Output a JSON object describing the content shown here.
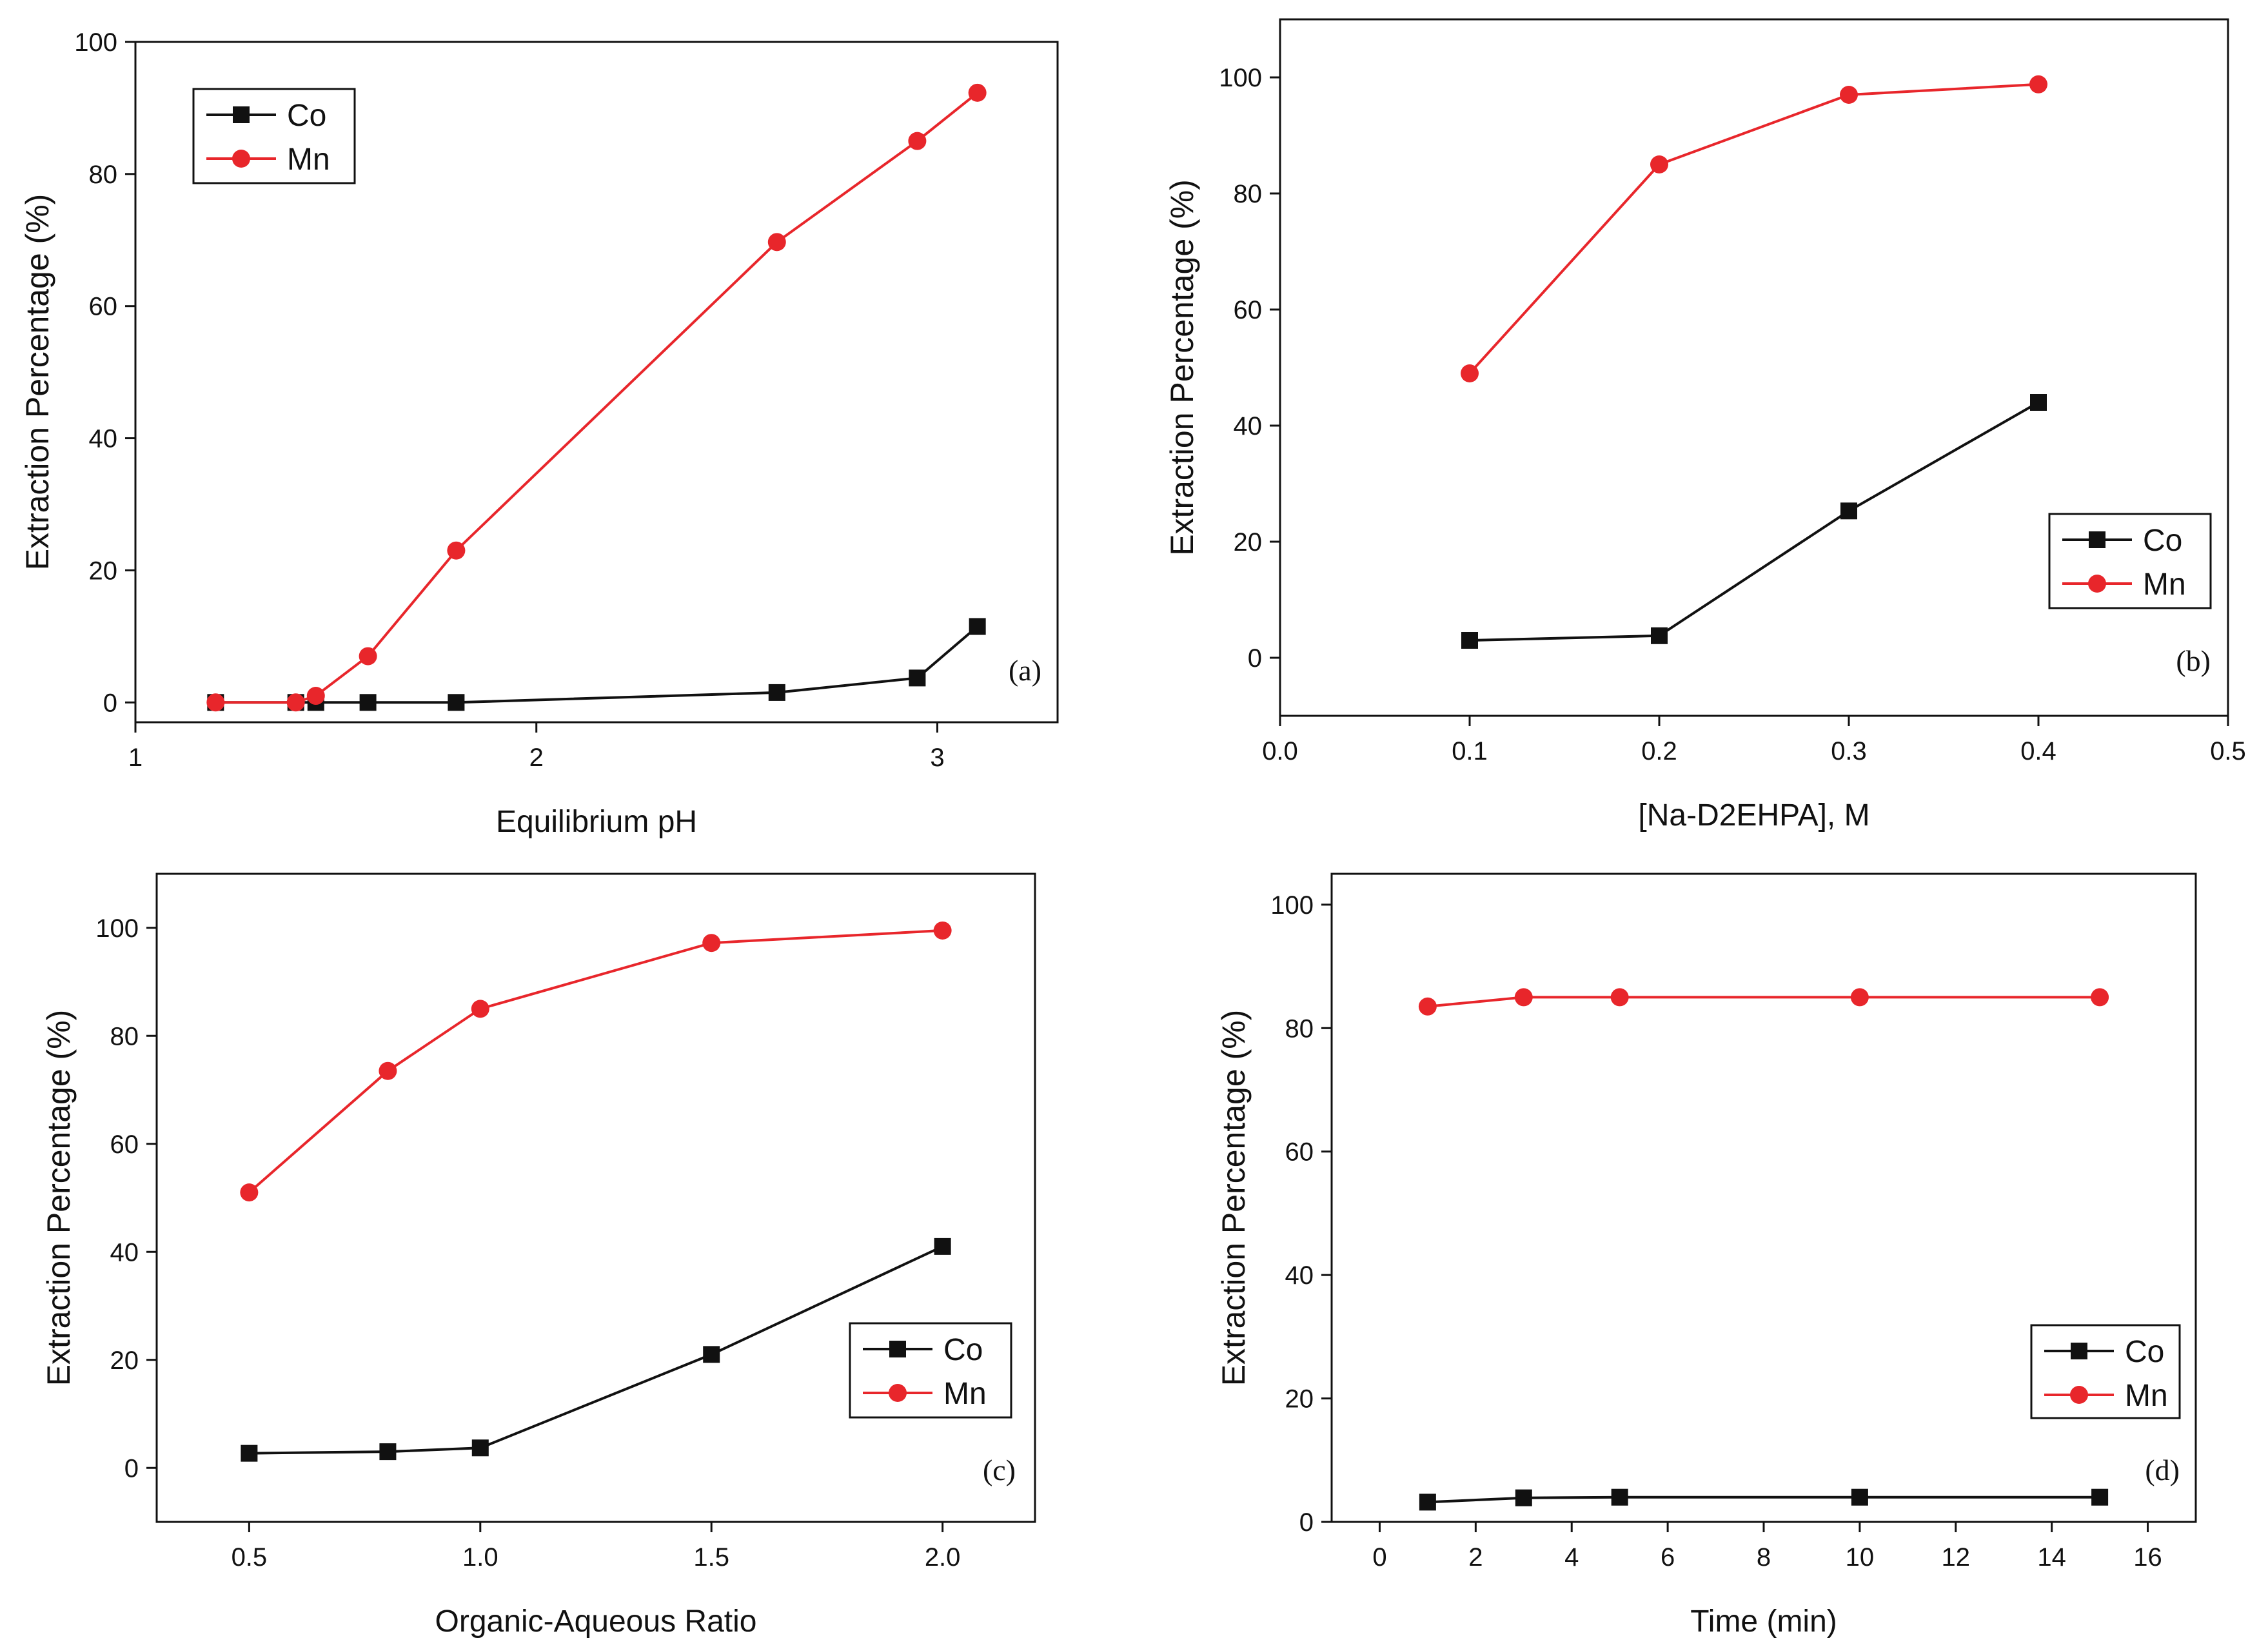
{
  "chart_data": [
    {
      "type": "line",
      "panel_label": "(a)",
      "xlabel": "Equilibrium pH",
      "ylabel": "Extraction Percentage (%)",
      "xlim": [
        1.0,
        3.3
      ],
      "ylim": [
        -3,
        100
      ],
      "xticks": [
        1,
        2,
        3
      ],
      "xtick_labels": [
        "1",
        "2",
        "3"
      ],
      "yticks": [
        0,
        20,
        40,
        60,
        80,
        100
      ],
      "ytick_labels": [
        "0",
        "20",
        "40",
        "60",
        "80",
        "100"
      ],
      "legend_position": "top-left",
      "series": [
        {
          "name": "Co",
          "marker": "square",
          "color": "#111111",
          "x": [
            1.2,
            1.4,
            1.45,
            1.58,
            1.8,
            2.6,
            2.95,
            3.1
          ],
          "y": [
            0,
            0,
            0,
            0,
            0,
            1.5,
            3.7,
            11.5
          ]
        },
        {
          "name": "Mn",
          "marker": "circle",
          "color": "#e8262b",
          "x": [
            1.2,
            1.4,
            1.45,
            1.58,
            1.8,
            2.6,
            2.95,
            3.1
          ],
          "y": [
            0,
            0,
            1.0,
            7.0,
            23.0,
            69.7,
            85.0,
            92.3
          ]
        }
      ]
    },
    {
      "type": "line",
      "panel_label": "(b)",
      "xlabel": "[Na-D2EHPA], M",
      "ylabel": "Extraction Percentage (%)",
      "xlim": [
        0.0,
        0.5
      ],
      "ylim": [
        -10,
        110
      ],
      "xticks": [
        0.0,
        0.1,
        0.2,
        0.3,
        0.4,
        0.5
      ],
      "xtick_labels": [
        "0.0",
        "0.1",
        "0.2",
        "0.3",
        "0.4",
        "0.5"
      ],
      "yticks": [
        0,
        20,
        40,
        60,
        80,
        100
      ],
      "ytick_labels": [
        "0",
        "20",
        "40",
        "60",
        "80",
        "100"
      ],
      "legend_position": "right",
      "series": [
        {
          "name": "Co",
          "marker": "square",
          "color": "#111111",
          "x": [
            0.1,
            0.2,
            0.3,
            0.4
          ],
          "y": [
            3.0,
            3.8,
            25.3,
            44.0
          ]
        },
        {
          "name": "Mn",
          "marker": "circle",
          "color": "#e8262b",
          "x": [
            0.1,
            0.2,
            0.3,
            0.4
          ],
          "y": [
            49.0,
            85.0,
            97.0,
            98.8
          ]
        }
      ]
    },
    {
      "type": "line",
      "panel_label": "(c)",
      "xlabel": "Organic-Aqueous Ratio",
      "ylabel": "Extraction Percentage (%)",
      "xlim": [
        0.3,
        2.2
      ],
      "ylim": [
        -10,
        110
      ],
      "xticks": [
        0.5,
        1.0,
        1.5,
        2.0
      ],
      "xtick_labels": [
        "0.5",
        "1.0",
        "1.5",
        "2.0"
      ],
      "yticks": [
        0,
        20,
        40,
        60,
        80,
        100
      ],
      "ytick_labels": [
        "0",
        "20",
        "40",
        "60",
        "80",
        "100"
      ],
      "legend_position": "bottom-right",
      "series": [
        {
          "name": "Co",
          "marker": "square",
          "color": "#111111",
          "x": [
            0.5,
            0.8,
            1.0,
            1.5,
            2.0
          ],
          "y": [
            2.7,
            3.0,
            3.7,
            21.0,
            41.0
          ]
        },
        {
          "name": "Mn",
          "marker": "circle",
          "color": "#e8262b",
          "x": [
            0.5,
            0.8,
            1.0,
            1.5,
            2.0
          ],
          "y": [
            51.0,
            73.5,
            85.0,
            97.2,
            99.5
          ]
        }
      ]
    },
    {
      "type": "line",
      "panel_label": "(d)",
      "xlabel": "Time (min)",
      "ylabel": "Extraction Percentage (%)",
      "xlim": [
        -1,
        17
      ],
      "ylim": [
        0,
        105
      ],
      "xticks": [
        0,
        2,
        4,
        6,
        8,
        10,
        12,
        14,
        16
      ],
      "xtick_labels": [
        "0",
        "2",
        "4",
        "6",
        "8",
        "10",
        "12",
        "14",
        "16"
      ],
      "yticks": [
        0,
        20,
        40,
        60,
        80,
        100
      ],
      "ytick_labels": [
        "0",
        "20",
        "40",
        "60",
        "80",
        "100"
      ],
      "legend_position": "bottom-right",
      "series": [
        {
          "name": "Co",
          "marker": "square",
          "color": "#111111",
          "x": [
            1,
            3,
            5,
            10,
            15
          ],
          "y": [
            3.2,
            3.9,
            4.0,
            4.0,
            4.0
          ]
        },
        {
          "name": "Mn",
          "marker": "circle",
          "color": "#e8262b",
          "x": [
            1,
            3,
            5,
            10,
            15
          ],
          "y": [
            83.5,
            85.0,
            85.0,
            85.0,
            85.0
          ]
        }
      ]
    }
  ]
}
